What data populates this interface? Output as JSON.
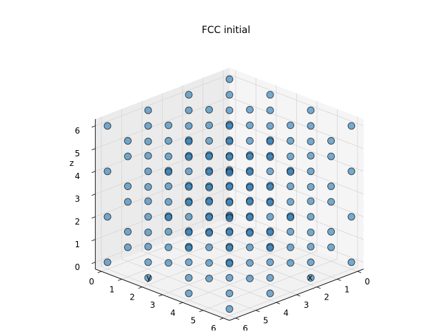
{
  "chart_data": {
    "type": "scatter",
    "projection": "3d",
    "title": "FCC initial",
    "xlabel": "x",
    "ylabel": "y",
    "zlabel": "z",
    "xlim": [
      0,
      6
    ],
    "ylim": [
      0,
      6
    ],
    "zlim": [
      0,
      6
    ],
    "xticks": [
      "0",
      "1",
      "2",
      "3",
      "4",
      "5",
      "6"
    ],
    "yticks": [
      "0",
      "1",
      "2",
      "3",
      "4",
      "5",
      "6"
    ],
    "zticks": [
      "0",
      "1",
      "2",
      "3",
      "4",
      "5",
      "6"
    ],
    "grid": true,
    "view": {
      "elev": 30,
      "azim": -135
    },
    "lattice": {
      "kind": "fcc",
      "lattice_constant": 2.0,
      "cells_per_axis": 3,
      "basis": [
        [
          0,
          0,
          0
        ],
        [
          0.5,
          0.5,
          0
        ],
        [
          0.5,
          0,
          0.5
        ],
        [
          0,
          0.5,
          0.5
        ]
      ],
      "range": [
        0,
        6
      ]
    },
    "marker": {
      "color": "#1f77b4",
      "alpha": 0.6,
      "edgecolor": "#000000"
    }
  }
}
